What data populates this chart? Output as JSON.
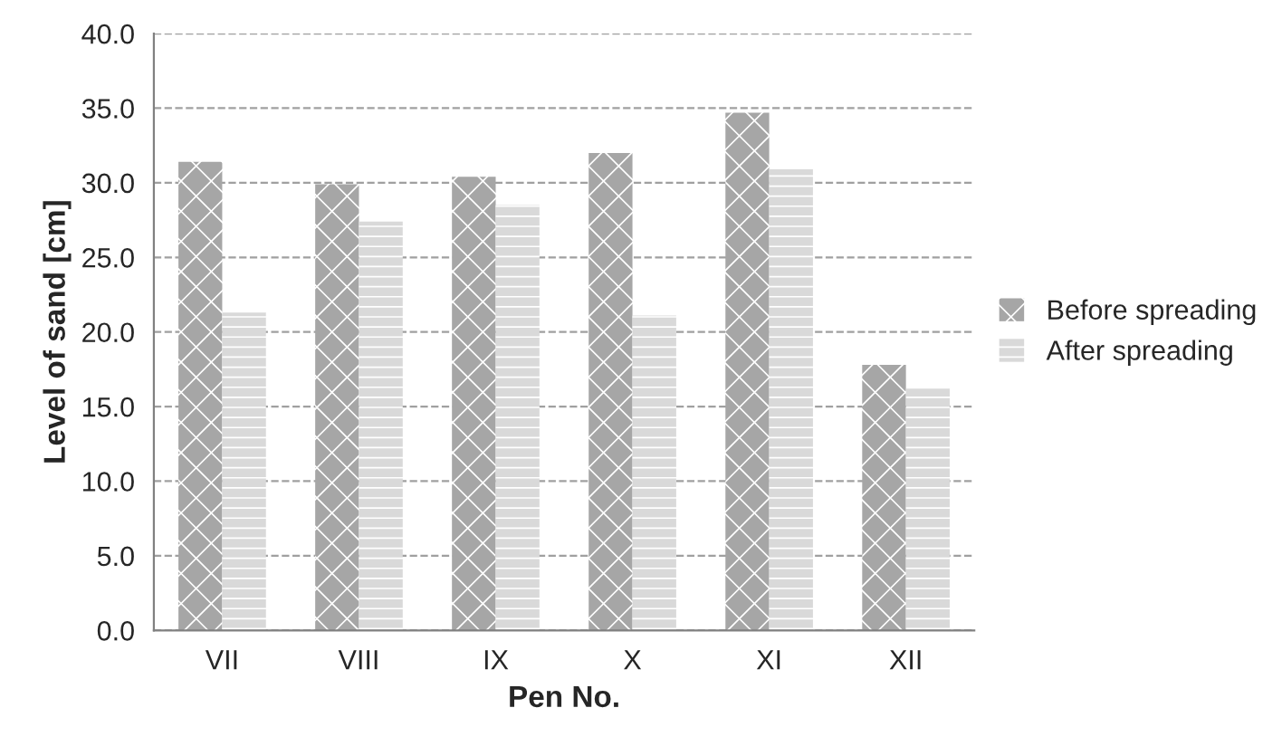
{
  "chart_data": {
    "type": "bar",
    "xlabel": "Pen No.",
    "ylabel": "Level of sand [cm]",
    "categories": [
      "VII",
      "VIII",
      "IX",
      "X",
      "XI",
      "XII"
    ],
    "series": [
      {
        "name": "Before spreading",
        "color": "#a6a6a6",
        "values": [
          31.4,
          29.9,
          30.4,
          32.0,
          34.7,
          17.8
        ]
      },
      {
        "name": "After spreading",
        "color": "#d9d9d9",
        "values": [
          21.3,
          27.4,
          28.5,
          21.1,
          30.9,
          16.2
        ]
      }
    ],
    "ylim": [
      0,
      40
    ],
    "yticks": [
      {
        "value": 0,
        "label": "0.0"
      },
      {
        "value": 5,
        "label": "5.0"
      },
      {
        "value": 10,
        "label": "10.0"
      },
      {
        "value": 15,
        "label": "15.0"
      },
      {
        "value": 20,
        "label": "20.0"
      },
      {
        "value": 25,
        "label": "25.0"
      },
      {
        "value": 30,
        "label": "30.0"
      },
      {
        "value": 35,
        "label": "35.0"
      },
      {
        "value": 40,
        "label": "40.0"
      }
    ],
    "grid": "y",
    "legend": "right"
  }
}
